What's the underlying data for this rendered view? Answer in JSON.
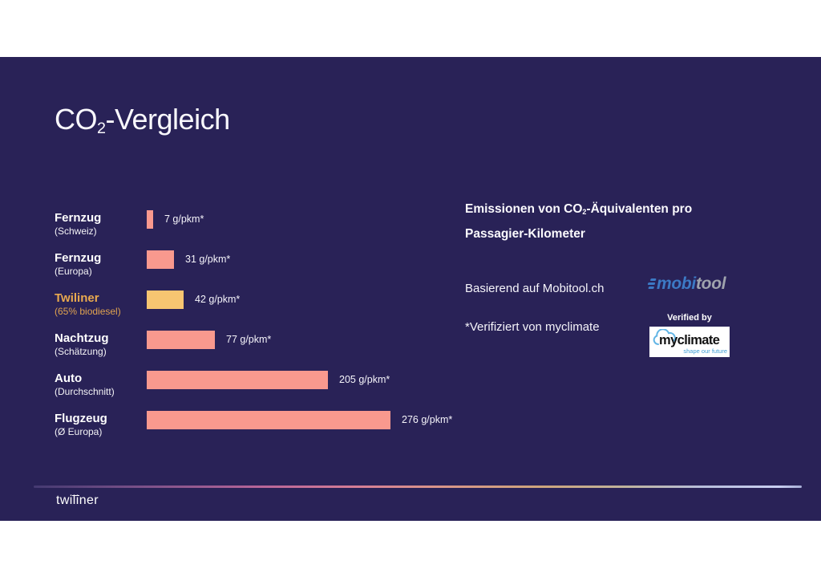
{
  "slide": {
    "title": {
      "prefix": "CO",
      "sub": "2",
      "suffix": "-Vergleich"
    }
  },
  "chart_data": {
    "type": "bar",
    "orientation": "horizontal",
    "title": "CO2-Vergleich",
    "unit": "g/pkm",
    "xlim": [
      0,
      276
    ],
    "grid": false,
    "legend": "none",
    "highlight_index": 2,
    "categories": [
      "Fernzug (Schweiz)",
      "Fernzug (Europa)",
      "Twiliner (65% biodiesel)",
      "Nachtzug (Schätzung)",
      "Auto (Durchschnitt)",
      "Flugzeug (Ø Europa)"
    ],
    "values": [
      7,
      31,
      42,
      77,
      205,
      276
    ],
    "rows": [
      {
        "label": "Fernzug",
        "sublabel": "(Schweiz)",
        "value": 7,
        "value_label": "7 g/pkm*",
        "bar_color": "#f9998e",
        "label_color": "#ffffff"
      },
      {
        "label": "Fernzug",
        "sublabel": "(Europa)",
        "value": 31,
        "value_label": "31 g/pkm*",
        "bar_color": "#f9998e",
        "label_color": "#ffffff"
      },
      {
        "label": "Twiliner",
        "sublabel": "(65% biodiesel)",
        "value": 42,
        "value_label": "42 g/pkm*",
        "bar_color": "#f7c571",
        "label_color": "#e9a94f"
      },
      {
        "label": "Nachtzug",
        "sublabel": "(Schätzung)",
        "value": 77,
        "value_label": "77 g/pkm*",
        "bar_color": "#f9998e",
        "label_color": "#ffffff"
      },
      {
        "label": "Auto",
        "sublabel": "(Durchschnitt)",
        "value": 205,
        "value_label": "205 g/pkm*",
        "bar_color": "#f9998e",
        "label_color": "#ffffff"
      },
      {
        "label": "Flugzeug",
        "sublabel": "(Ø Europa)",
        "value": 276,
        "value_label": "276 g/pkm*",
        "bar_color": "#f9998e",
        "label_color": "#ffffff"
      }
    ]
  },
  "right_panel": {
    "heading": {
      "prefix": "Emissionen von CO",
      "sub": "2",
      "suffix": "-Äquivalenten pro",
      "line2": "Passagier-Kilometer"
    },
    "source_text": "Basierend auf Mobitool.ch",
    "verified_text": "*Verifiziert von myclimate",
    "mobitool_logo": {
      "part_blue": "mobi",
      "part_gray": "tool"
    },
    "myclimate_badge": {
      "verified_by": "Verified by",
      "name": "myclimate",
      "tagline": "shape our future"
    }
  },
  "footer": {
    "logo": {
      "pre": "twi",
      "mid": "li",
      "post": "ner"
    }
  },
  "colors": {
    "background": "#292257",
    "bar_default": "#f9998e",
    "bar_highlight": "#f7c571",
    "highlight_label": "#e9a94f",
    "text": "#ffffff",
    "mobitool_blue": "#3c79c4",
    "mobitool_gray": "#9fa3ad",
    "myclimate_blue": "#62b5e5",
    "myclimate_tagline_blue": "#3f9dd4"
  }
}
